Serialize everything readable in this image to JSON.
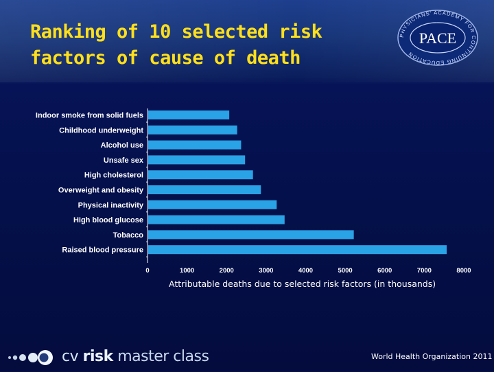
{
  "slide": {
    "title_line1": "Ranking of 10 selected risk",
    "title_line2": "factors of cause of death",
    "source": "World Health Organization 2011",
    "logo": {
      "name": "PACE",
      "ring_text": "PHYSICIANS' ACADEMY FOR CONTINUING EDUCATION"
    },
    "brand": {
      "cv": "cv ",
      "risk": "risk",
      "master": " master class"
    }
  },
  "chart_data": {
    "type": "bar",
    "orientation": "horizontal",
    "categories": [
      "Indoor smoke from solid fuels",
      "Childhood underweight",
      "Alcohol use",
      "Unsafe sex",
      "High cholesterol",
      "Overweight and obesity",
      "Physical inactivity",
      "High blood glucose",
      "Tobacco",
      "Raised blood pressure"
    ],
    "values": [
      2050,
      2250,
      2350,
      2450,
      2650,
      2850,
      3250,
      3450,
      5200,
      7550
    ],
    "xlabel": "Attributable deaths due to selected risk factors (in thousands)",
    "xlim": [
      0,
      8000
    ],
    "xticks": [
      "0",
      "1000",
      "2000",
      "3000",
      "4000",
      "5000",
      "6000",
      "7000",
      "8000"
    ],
    "grid": false,
    "bar_color": "#2aa2e6",
    "label_color": "#ffffff"
  },
  "colors": {
    "title": "#ffe01a",
    "background": "#04104a"
  }
}
